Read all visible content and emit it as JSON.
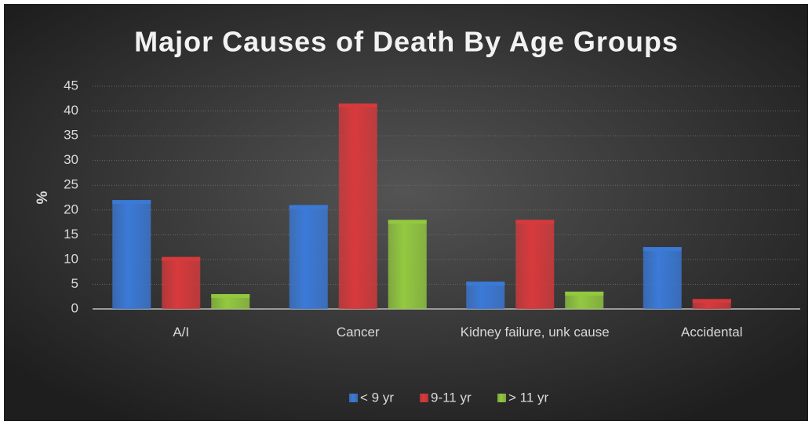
{
  "chart_data": {
    "type": "bar",
    "title": "Major Causes of Death By Age Groups",
    "y_label": "%",
    "categories": [
      "A/I",
      "Cancer",
      "Kidney failure, unk cause",
      "Accidental"
    ],
    "series": [
      {
        "name": "< 9 yr",
        "color": "#3b7ad8",
        "values": [
          22,
          21,
          5.5,
          12.5
        ]
      },
      {
        "name": "9-11 yr",
        "color": "#d83a3c",
        "values": [
          10.5,
          41.5,
          18,
          2
        ]
      },
      {
        "name": "> 11 yr",
        "color": "#93c940",
        "values": [
          3,
          18,
          3.5,
          0
        ]
      }
    ],
    "ylim": [
      0,
      45
    ],
    "yticks": [
      0,
      5,
      10,
      15,
      20,
      25,
      30,
      35,
      40,
      45
    ],
    "grid": true,
    "legend": "bottom"
  }
}
